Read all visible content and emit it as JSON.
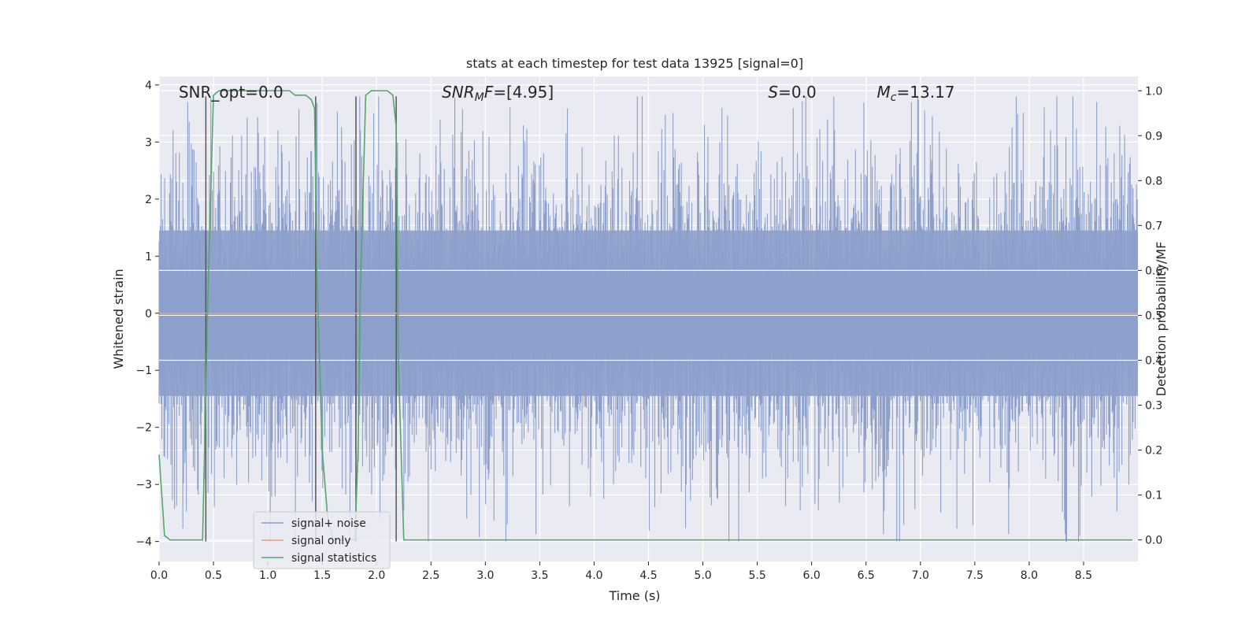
{
  "chart_data": {
    "type": "line",
    "title": "stats at each timestep for test data 13925 [signal=0]",
    "xlabel": "Time (s)",
    "ylabel": "Whitened strain",
    "y2label": "Detection probability/MF",
    "xlim": [
      0.0,
      9.0
    ],
    "ylim": [
      -4.35,
      4.15
    ],
    "y2lim": [
      -0.048,
      1.032
    ],
    "xticks": [
      0.0,
      0.5,
      1.0,
      1.5,
      2.0,
      2.5,
      3.0,
      3.5,
      4.0,
      4.5,
      5.0,
      5.5,
      6.0,
      6.5,
      7.0,
      7.5,
      8.0,
      8.5
    ],
    "xtick_labels": [
      "0.0",
      "0.5",
      "1.0",
      "1.5",
      "2.0",
      "2.5",
      "3.0",
      "3.5",
      "4.0",
      "4.5",
      "5.0",
      "5.5",
      "6.0",
      "6.5",
      "7.0",
      "7.5",
      "8.0",
      "8.5"
    ],
    "yticks": [
      4,
      3,
      2,
      1,
      0,
      -1,
      -2,
      -3,
      -4
    ],
    "ytick_labels": [
      "4",
      "3",
      "2",
      "1",
      "0",
      "−1",
      "−2",
      "−3",
      "−4"
    ],
    "y2ticks": [
      1.0,
      0.9,
      0.8,
      0.7,
      0.6,
      0.5,
      0.4,
      0.3,
      0.2,
      0.1,
      0.0
    ],
    "y2tick_labels": [
      "1.0",
      "0.9",
      "0.8",
      "0.7",
      "0.6",
      "0.5",
      "0.4",
      "0.3",
      "0.2",
      "0.1",
      "0.0"
    ],
    "grid": true,
    "legend_position": "lower-left",
    "annotations": [
      {
        "id": "snr-opt",
        "text": "SNR_opt=0.0",
        "x": 0.18
      },
      {
        "id": "snr-mf",
        "text": "SNR_MF=[4.95]",
        "x": 2.6
      },
      {
        "id": "s-stat",
        "text": "S=0.0",
        "x": 5.6
      },
      {
        "id": "mc",
        "text": "M_c=13.17",
        "x": 6.6
      }
    ],
    "vlines": [
      0.43,
      1.44,
      1.81,
      2.18
    ],
    "vline_ymax": 3.8,
    "vline_ymin": -4.0,
    "noise_envelope": {
      "mean": 0.0,
      "std": 0.95,
      "ymax": 3.8,
      "ymin": -4.0,
      "num_samples": 1400
    },
    "series": [
      {
        "name": "signal+ noise",
        "color": "#8da0cb",
        "axis": "left",
        "style": "noise"
      },
      {
        "name": "signal only",
        "color": "#e8a07a",
        "axis": "left",
        "x": [
          0.0,
          9.0
        ],
        "y": [
          0.0,
          0.0
        ]
      },
      {
        "name": "signal statistics",
        "color": "#55a868",
        "axis": "right",
        "x": [
          0.0,
          0.05,
          0.1,
          0.15,
          0.2,
          0.25,
          0.3,
          0.35,
          0.4,
          0.45,
          0.5,
          0.55,
          0.6,
          0.7,
          0.8,
          0.9,
          1.0,
          1.1,
          1.2,
          1.25,
          1.3,
          1.35,
          1.4,
          1.43,
          1.45,
          1.5,
          1.55,
          1.6,
          1.7,
          1.75,
          1.8,
          1.83,
          1.85,
          1.9,
          1.95,
          2.0,
          2.05,
          2.1,
          2.15,
          2.18,
          2.2,
          2.25,
          2.3,
          2.4,
          3.0,
          4.0,
          5.0,
          6.0,
          7.0,
          8.0,
          8.95
        ],
        "y": [
          0.19,
          0.01,
          0.0,
          0.0,
          0.0,
          0.0,
          0.0,
          0.0,
          0.0,
          0.55,
          0.99,
          1.0,
          1.0,
          1.0,
          1.0,
          1.0,
          1.0,
          1.0,
          1.0,
          0.99,
          0.99,
          0.99,
          0.98,
          0.96,
          0.6,
          0.2,
          0.05,
          0.0,
          0.0,
          0.0,
          0.0,
          0.2,
          0.55,
          0.99,
          1.0,
          1.0,
          1.0,
          1.0,
          0.99,
          0.92,
          0.4,
          0.0,
          0.0,
          0.0,
          0.0,
          0.0,
          0.0,
          0.0,
          0.0,
          0.0,
          0.0
        ]
      }
    ]
  }
}
